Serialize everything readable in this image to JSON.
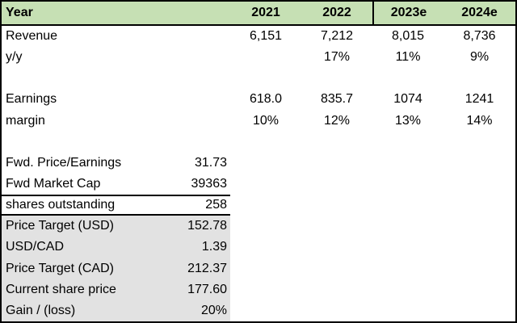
{
  "colors": {
    "header_bg": "#c6e0b4",
    "summary_bg": "#e2e2e2",
    "border": "#000000"
  },
  "table": {
    "header": {
      "label": "Year",
      "years": [
        "2021",
        "2022",
        "2023e",
        "2024e"
      ]
    },
    "year_rows": [
      {
        "label": "Revenue",
        "values": [
          "6,151",
          "7,212",
          "8,015",
          "8,736"
        ]
      },
      {
        "label": "y/y",
        "values": [
          "",
          "17%",
          "11%",
          "9%"
        ]
      },
      {
        "label": "",
        "values": [
          "",
          "",
          "",
          ""
        ]
      },
      {
        "label": "Earnings",
        "values": [
          "618.0",
          "835.7",
          "1074",
          "1241"
        ]
      },
      {
        "label": "margin",
        "values": [
          "10%",
          "12%",
          "13%",
          "14%"
        ]
      },
      {
        "label": "",
        "values": [
          "",
          "",
          "",
          ""
        ]
      }
    ],
    "summary_rows": [
      {
        "label": "Fwd. Price/Earnings",
        "value": "31.73"
      },
      {
        "label": "Fwd Market Cap",
        "value": "39363"
      },
      {
        "label": "shares outstanding",
        "value": "258"
      },
      {
        "label": "Price Target (USD)",
        "value": "152.78"
      },
      {
        "label": "USD/CAD",
        "value": "1.39"
      },
      {
        "label": "Price Target (CAD)",
        "value": "212.37"
      },
      {
        "label": "Current share price",
        "value": "177.60"
      },
      {
        "label": "Gain / (loss)",
        "value": "20%"
      }
    ]
  }
}
